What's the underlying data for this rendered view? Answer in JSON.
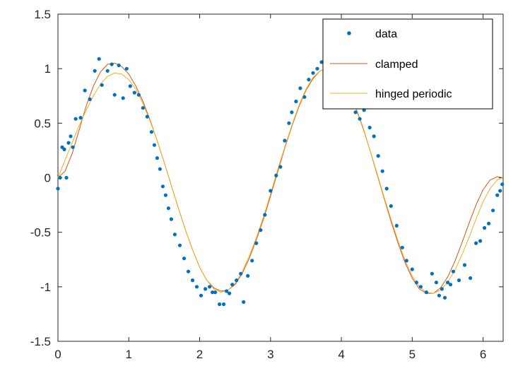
{
  "chart_data": {
    "type": "line",
    "title": "",
    "xlabel": "",
    "ylabel": "",
    "xlim": [
      0,
      6.2832
    ],
    "ylim": [
      -1.5,
      1.5
    ],
    "x_ticks": [
      "0",
      "1",
      "2",
      "3",
      "4",
      "5",
      "6"
    ],
    "y_ticks": [
      "-1.5",
      "-1",
      "-0.5",
      "0",
      "0.5",
      "1",
      "1.5"
    ],
    "grid": false,
    "legend": "top-right",
    "colors": {
      "data": "#0072bd",
      "clamped": "#d95319",
      "hinged": "#edb120",
      "axis": "#262626"
    },
    "series": [
      {
        "name": "data",
        "style": "markers",
        "x": [
          0.0,
          0.03,
          0.06,
          0.09,
          0.12,
          0.15,
          0.18,
          0.21,
          0.25,
          0.32,
          0.38,
          0.45,
          0.52,
          0.58,
          0.62,
          0.7,
          0.76,
          0.8,
          0.86,
          0.92,
          0.97,
          1.02,
          1.08,
          1.14,
          1.2,
          1.26,
          1.32,
          1.36,
          1.4,
          1.44,
          1.48,
          1.52,
          1.56,
          1.6,
          1.65,
          1.72,
          1.78,
          1.84,
          1.9,
          1.96,
          2.02,
          2.08,
          2.14,
          2.18,
          2.22,
          2.28,
          2.34,
          2.38,
          2.42,
          2.46,
          2.52,
          2.58,
          2.62,
          2.68,
          2.74,
          2.8,
          2.86,
          2.92,
          3.0,
          3.08,
          3.14,
          3.2,
          3.26,
          3.3,
          3.36,
          3.42,
          3.48,
          3.54,
          3.6,
          3.66,
          3.72,
          3.78,
          3.84,
          3.88,
          3.92,
          3.96,
          4.02,
          4.08,
          4.14,
          4.2,
          4.26,
          4.32,
          4.4,
          4.46,
          4.52,
          4.58,
          4.64,
          4.7,
          4.78,
          4.86,
          4.92,
          5.0,
          5.06,
          5.12,
          5.2,
          5.28,
          5.34,
          5.38,
          5.42,
          5.46,
          5.5,
          5.54,
          5.58,
          5.66,
          5.74,
          5.82,
          5.9,
          5.96,
          6.02,
          6.08,
          6.14,
          6.2,
          6.24,
          6.27
        ],
        "y": [
          -0.1,
          0.0,
          0.28,
          0.26,
          0.0,
          0.32,
          0.38,
          0.28,
          0.54,
          0.55,
          0.8,
          0.72,
          0.98,
          1.09,
          0.85,
          0.98,
          1.04,
          0.76,
          1.03,
          0.73,
          1.0,
          0.84,
          0.78,
          0.76,
          0.64,
          0.56,
          0.42,
          0.3,
          0.18,
          0.08,
          -0.08,
          -0.16,
          -0.28,
          -0.38,
          -0.52,
          -0.62,
          -0.74,
          -0.86,
          -0.94,
          -1.0,
          -1.08,
          -1.02,
          -1.0,
          -1.05,
          -1.05,
          -1.16,
          -1.16,
          -1.04,
          -1.06,
          -0.98,
          -0.94,
          -0.88,
          -1.14,
          -0.9,
          -0.76,
          -0.6,
          -0.48,
          -0.34,
          -0.12,
          0.02,
          0.1,
          0.34,
          0.5,
          0.6,
          0.7,
          0.82,
          0.74,
          0.9,
          0.96,
          1.0,
          1.06,
          1.1,
          1.06,
          1.04,
          0.96,
          0.92,
          0.94,
          0.82,
          0.86,
          0.6,
          0.54,
          0.62,
          0.46,
          0.38,
          0.2,
          0.06,
          -0.1,
          -0.26,
          -0.44,
          -0.64,
          -0.76,
          -0.84,
          -0.96,
          -1.0,
          -1.05,
          -0.88,
          -0.96,
          -1.08,
          -1.02,
          -1.1,
          -0.96,
          -0.98,
          -0.86,
          -0.94,
          -0.8,
          -0.92,
          -0.6,
          -0.58,
          -0.46,
          -0.42,
          -0.3,
          -0.16,
          -0.12,
          -0.06
        ]
      },
      {
        "name": "clamped",
        "style": "line",
        "x": [
          0.0,
          0.1,
          0.2,
          0.3,
          0.4,
          0.5,
          0.6,
          0.7,
          0.8,
          0.9,
          1.0,
          1.1,
          1.2,
          1.3,
          1.4,
          1.5,
          1.6,
          1.7,
          1.8,
          1.9,
          2.0,
          2.1,
          2.2,
          2.3,
          2.4,
          2.5,
          2.6,
          2.7,
          2.8,
          2.9,
          3.0,
          3.1,
          3.2,
          3.3,
          3.4,
          3.5,
          3.6,
          3.7,
          3.8,
          3.9,
          4.0,
          4.1,
          4.2,
          4.3,
          4.4,
          4.5,
          4.6,
          4.7,
          4.8,
          4.9,
          5.0,
          5.1,
          5.2,
          5.3,
          5.4,
          5.5,
          5.6,
          5.7,
          5.8,
          5.9,
          6.0,
          6.1,
          6.2,
          6.28
        ],
        "y": [
          0.0,
          0.06,
          0.22,
          0.44,
          0.66,
          0.84,
          0.97,
          1.04,
          1.05,
          1.02,
          0.95,
          0.84,
          0.7,
          0.53,
          0.34,
          0.14,
          -0.07,
          -0.28,
          -0.48,
          -0.66,
          -0.82,
          -0.94,
          -1.01,
          -1.04,
          -1.03,
          -0.98,
          -0.88,
          -0.74,
          -0.57,
          -0.38,
          -0.17,
          0.05,
          0.27,
          0.47,
          0.65,
          0.8,
          0.91,
          0.98,
          1.0,
          0.98,
          0.91,
          0.8,
          0.65,
          0.47,
          0.26,
          0.04,
          -0.18,
          -0.4,
          -0.6,
          -0.78,
          -0.92,
          -1.02,
          -1.06,
          -1.06,
          -1.01,
          -0.91,
          -0.77,
          -0.6,
          -0.42,
          -0.25,
          -0.11,
          -0.02,
          0.01,
          0.0
        ]
      },
      {
        "name": "hinged periodic",
        "style": "line",
        "x": [
          0.0,
          0.1,
          0.2,
          0.3,
          0.4,
          0.5,
          0.6,
          0.7,
          0.8,
          0.9,
          1.0,
          1.1,
          1.2,
          1.3,
          1.4,
          1.5,
          1.6,
          1.7,
          1.8,
          1.9,
          2.0,
          2.1,
          2.2,
          2.3,
          2.4,
          2.5,
          2.6,
          2.7,
          2.8,
          2.9,
          3.0,
          3.1,
          3.2,
          3.3,
          3.4,
          3.5,
          3.6,
          3.7,
          3.8,
          3.9,
          4.0,
          4.1,
          4.2,
          4.3,
          4.4,
          4.5,
          4.6,
          4.7,
          4.8,
          4.9,
          5.0,
          5.1,
          5.2,
          5.3,
          5.4,
          5.5,
          5.6,
          5.7,
          5.8,
          5.9,
          6.0,
          6.1,
          6.2,
          6.28
        ],
        "y": [
          0.0,
          0.16,
          0.32,
          0.48,
          0.62,
          0.75,
          0.86,
          0.93,
          0.96,
          0.95,
          0.9,
          0.81,
          0.68,
          0.52,
          0.34,
          0.14,
          -0.07,
          -0.28,
          -0.48,
          -0.66,
          -0.82,
          -0.94,
          -1.02,
          -1.05,
          -1.03,
          -0.97,
          -0.86,
          -0.72,
          -0.55,
          -0.36,
          -0.15,
          0.07,
          0.28,
          0.48,
          0.66,
          0.81,
          0.92,
          0.98,
          1.0,
          0.97,
          0.9,
          0.79,
          0.64,
          0.46,
          0.26,
          0.05,
          -0.17,
          -0.38,
          -0.58,
          -0.76,
          -0.9,
          -1.0,
          -1.05,
          -1.06,
          -1.03,
          -0.96,
          -0.85,
          -0.71,
          -0.55,
          -0.38,
          -0.22,
          -0.1,
          -0.02,
          0.0
        ]
      }
    ]
  }
}
